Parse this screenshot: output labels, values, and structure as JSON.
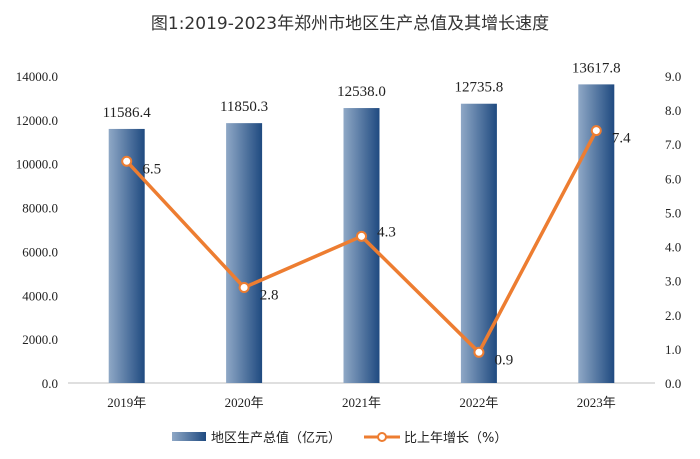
{
  "chart_data": {
    "type": "bar+line",
    "title": "图1:2019-2023年郑州市地区生产总值及其增长速度",
    "categories": [
      "2019年",
      "2020年",
      "2021年",
      "2022年",
      "2023年"
    ],
    "series": [
      {
        "name": "地区生产总值（亿元）",
        "type": "bar",
        "axis": "left",
        "values": [
          11586.4,
          11850.3,
          12538.0,
          12735.8,
          13617.8
        ],
        "labels": [
          "11586.4",
          "11850.3",
          "12538.0",
          "12735.8",
          "13617.8"
        ],
        "color": "#2f5a8f"
      },
      {
        "name": "比上年增长（%）",
        "type": "line",
        "axis": "right",
        "values": [
          6.5,
          2.8,
          4.3,
          0.9,
          7.4
        ],
        "labels": [
          "6.5",
          "2.8",
          "4.3",
          "0.9",
          "7.4"
        ],
        "color": "#ed7d31"
      }
    ],
    "y_left": {
      "range": [
        0,
        14000
      ],
      "ticks": [
        "0.0",
        "2000.0",
        "4000.0",
        "6000.0",
        "8000.0",
        "10000.0",
        "12000.0",
        "14000.0"
      ]
    },
    "y_right": {
      "range": [
        0,
        9
      ],
      "ticks": [
        "0.0",
        "1.0",
        "2.0",
        "3.0",
        "4.0",
        "5.0",
        "6.0",
        "7.0",
        "8.0",
        "9.0"
      ]
    },
    "grid": false,
    "legend": "bottom"
  }
}
